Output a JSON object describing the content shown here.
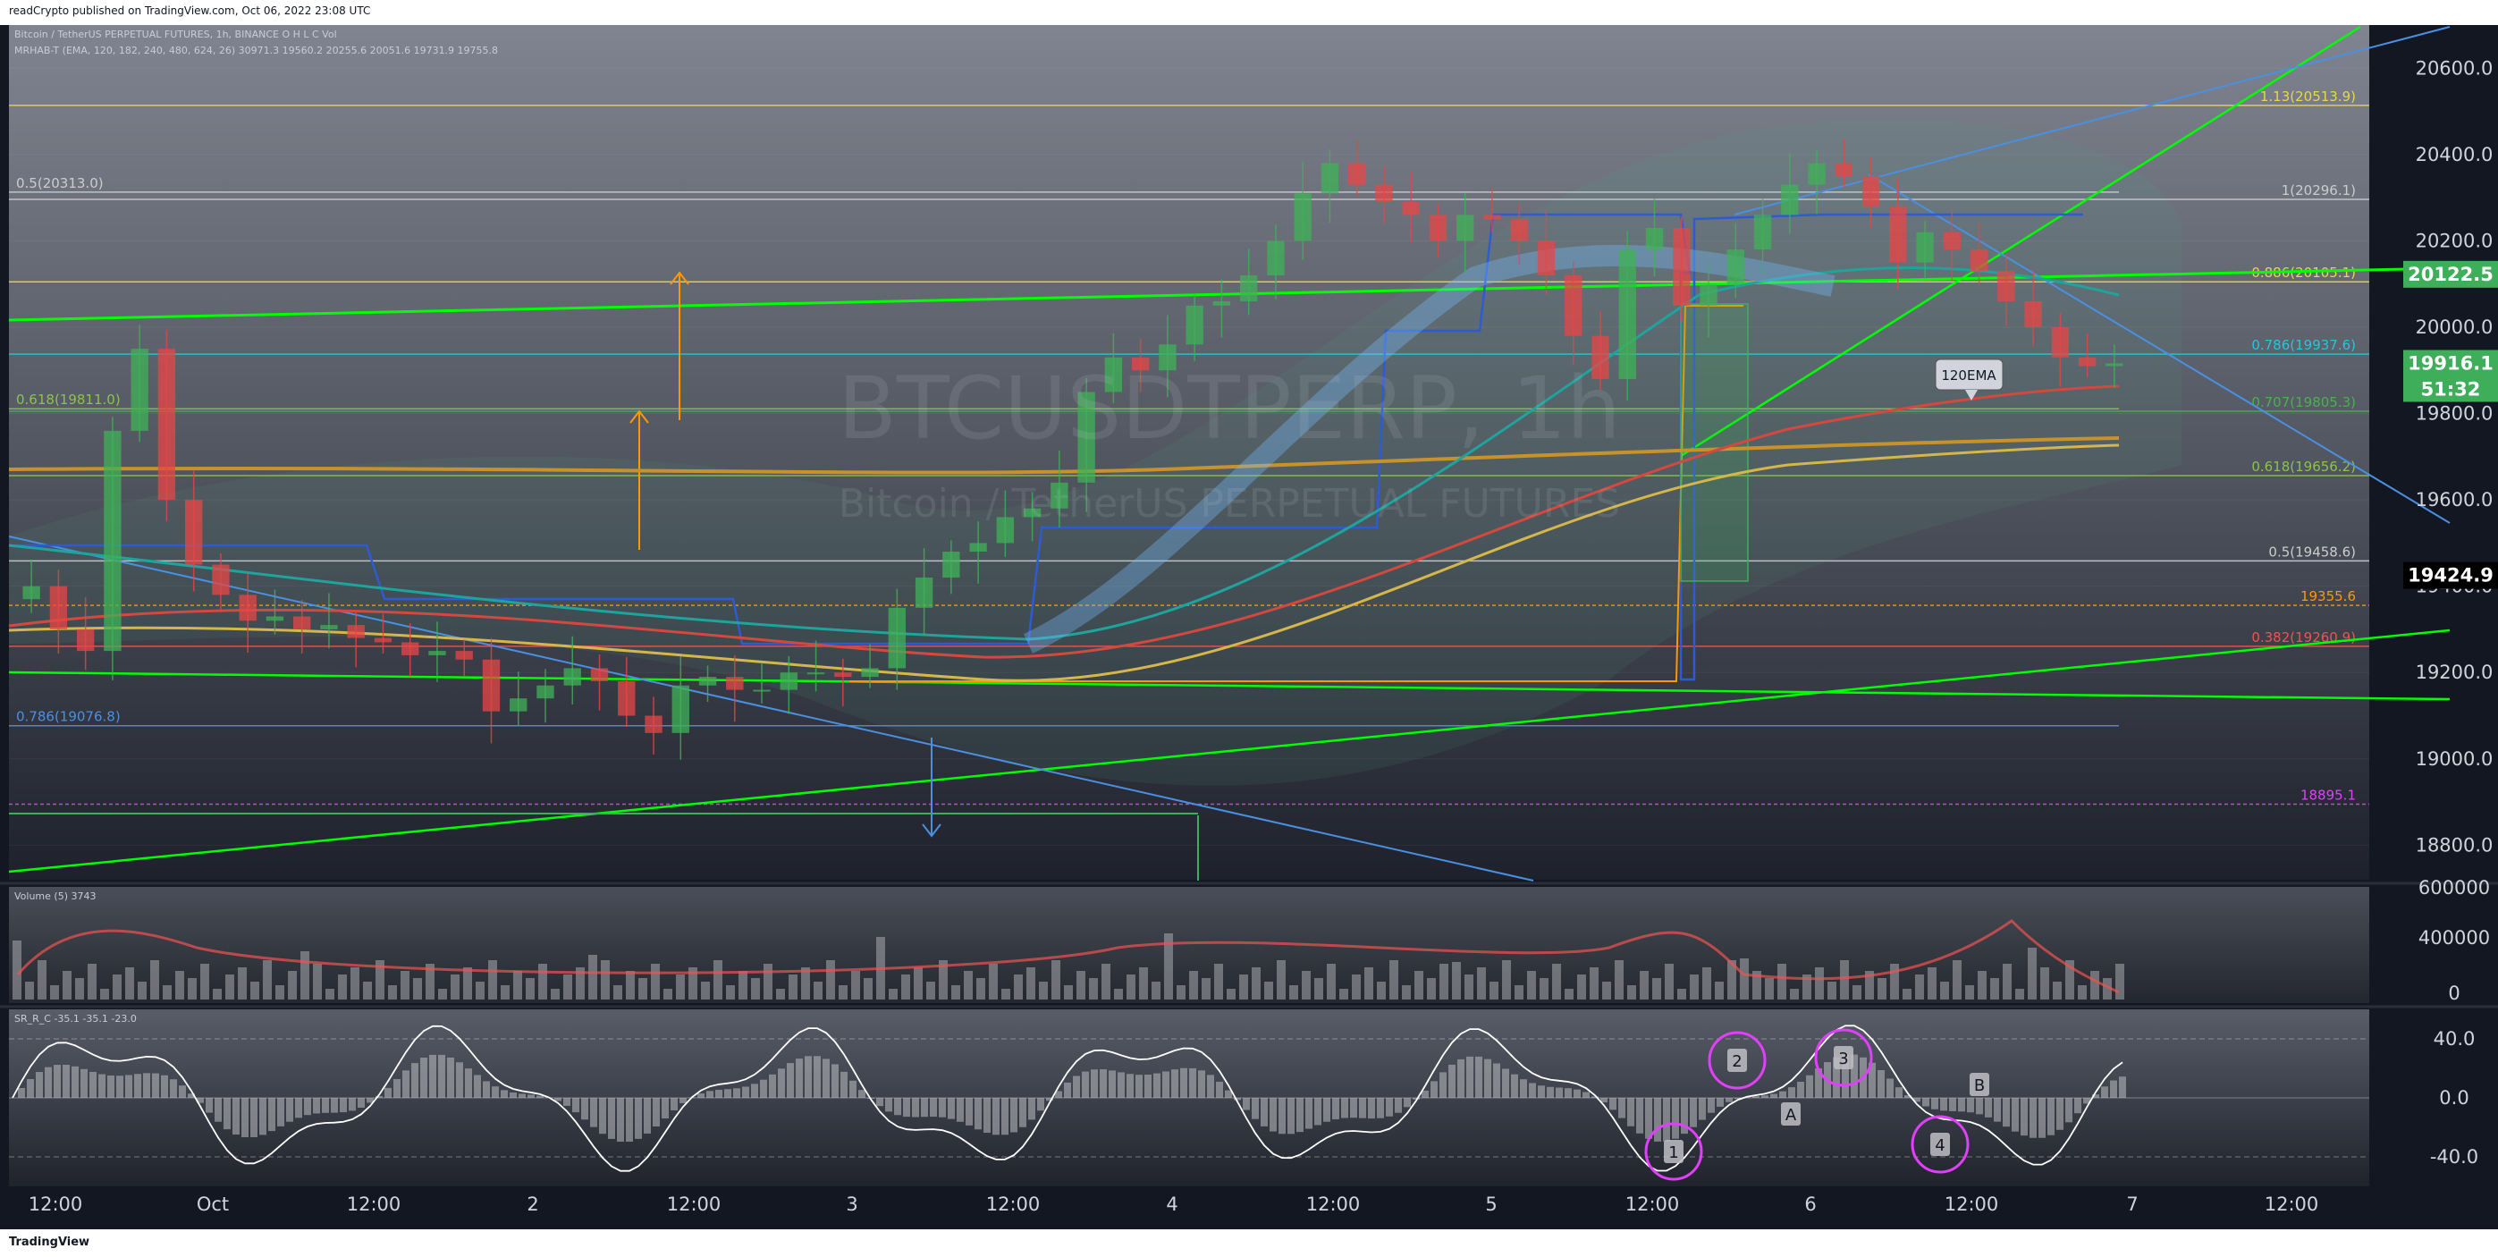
{
  "header": {
    "published": "readCrypto published on TradingView.com, Oct 06, 2022 23:08 UTC",
    "symbol_line": "Bitcoin / TetherUS PERPETUAL FUTURES, 1h, BINANCE  O  H  L  C  Vol",
    "mrhab_line": "MRHAB-T (EMA, 120, 182, 240, 480, 624, 26)  30971.3  19560.2  20255.6  20051.6  19731.9  19755.8",
    "volume_line": "Volume (5)  3743",
    "sr_line": "SR_R_C  -35.1  -35.1  -23.0"
  },
  "watermark": {
    "ticker": "BTCUSDTPERP, 1h",
    "name": "Bitcoin / TetherUS PERPETUAL FUTURES"
  },
  "footer": {
    "brand": "TradingView"
  },
  "colors": {
    "background": "#131722",
    "up": "#26a69a",
    "down": "#ef5350",
    "green_line": "#00ff00",
    "blue_line": "#4a90e2",
    "orange": "#ff9800",
    "ema_red": "#d3483f",
    "ema_orange": "#c8922a",
    "ema_yellow": "#d4b64a",
    "ema_teal": "#1fa39c",
    "price_green": "#3fae5a",
    "price_black": "#000000",
    "osc_cyan": "#00bcd4",
    "circle": "#e040fb"
  },
  "chart_data": [
    {
      "type": "candlestick",
      "title": "BTCUSDTPERP, 1h",
      "ylim": [
        18720,
        20700
      ],
      "y_ticks": [
        18800,
        19000,
        19200,
        19400,
        19600,
        19800,
        20000,
        20200,
        20400,
        20600
      ],
      "y_tick_labels": [
        "18800.0",
        "19000.0",
        "19200.0",
        "19400.0",
        "19600.0",
        "19800.0",
        "20000.0",
        "20200.0",
        "20400.0",
        "20600.0"
      ],
      "x_tick_labels": [
        "12:00",
        "Oct",
        "12:00",
        "2",
        "12:00",
        "3",
        "12:00",
        "4",
        "12:00",
        "5",
        "12:00",
        "6",
        "12:00",
        "7",
        "12:00"
      ],
      "price_labels": [
        {
          "text": "20122.5",
          "value": 20122.5,
          "color": "#3fae5a"
        },
        {
          "text": "19916.1",
          "value": 19916.1,
          "color": "#3fae5a"
        },
        {
          "text": "51:32",
          "value": 19916.1,
          "color": "#3fae5a"
        },
        {
          "text": "19424.9",
          "value": 19424.9,
          "color": "#000000"
        }
      ],
      "fib_levels": [
        {
          "text": "1.13(20513.9)",
          "value": 20513.9,
          "color": "#e6d84a",
          "side": "right"
        },
        {
          "text": "1(20296.1)",
          "value": 20296.1,
          "color": "#cccccc",
          "side": "right"
        },
        {
          "text": "0.886(20105.1)",
          "value": 20105.1,
          "color": "#e6d84a",
          "side": "right"
        },
        {
          "text": "0.786(19937.6)",
          "value": 19937.6,
          "color": "#26c6da",
          "side": "right"
        },
        {
          "text": "0.707(19805.3)",
          "value": 19805.3,
          "color": "#4caf50",
          "side": "right"
        },
        {
          "text": "0.618(19656.2)",
          "value": 19656.2,
          "color": "#8bc34a",
          "side": "right"
        },
        {
          "text": "0.5(19458.6)",
          "value": 19458.6,
          "color": "#cccccc",
          "side": "right"
        },
        {
          "text": "19355.6",
          "value": 19355.6,
          "color": "#ff9800",
          "side": "right"
        },
        {
          "text": "0.382(19260.9)",
          "value": 19260.9,
          "color": "#ef5350",
          "side": "right"
        },
        {
          "text": "18895.1",
          "value": 18895.1,
          "color": "#e040fb",
          "side": "right"
        },
        {
          "text": "0.5(20313.0)",
          "value": 20313.0,
          "color": "#cccccc",
          "side": "left"
        },
        {
          "text": "0.618(19811.0)",
          "value": 19811.0,
          "color": "#8bc34a",
          "side": "left"
        },
        {
          "text": "0.786(19076.8)",
          "value": 19076.8,
          "color": "#4a90e2",
          "side": "left"
        }
      ],
      "annotation": "120EMA",
      "close_series": [
        19400,
        19300,
        19250,
        19760,
        19950,
        19600,
        19450,
        19380,
        19320,
        19330,
        19300,
        19310,
        19280,
        19270,
        19240,
        19250,
        19230,
        19110,
        19140,
        19170,
        19210,
        19180,
        19100,
        19060,
        19170,
        19190,
        19160,
        19160,
        19200,
        19200,
        19190,
        19210,
        19350,
        19420,
        19480,
        19500,
        19560,
        19580,
        19640,
        19850,
        19930,
        19900,
        19960,
        20050,
        20060,
        20120,
        20200,
        20310,
        20380,
        20330,
        20290,
        20260,
        20200,
        20260,
        20250,
        20200,
        20120,
        19980,
        19880,
        20180,
        20230,
        20050,
        20100,
        20180,
        20260,
        20330,
        20380,
        20350,
        20280,
        20150,
        20220,
        20180,
        20130,
        20060,
        20000,
        19930,
        19910,
        19916
      ]
    },
    {
      "type": "bar",
      "title": "Volume (5)",
      "ylim": [
        0,
        600000
      ],
      "y_tick_labels": [
        "0",
        "400000",
        "600000"
      ]
    },
    {
      "type": "line",
      "title": "SR_R_C",
      "ylim": [
        -60,
        60
      ],
      "y_tick_labels": [
        "40.0",
        "0.0",
        "-40.0"
      ],
      "markers": [
        "1",
        "2",
        "3",
        "4",
        "A",
        "B"
      ]
    }
  ]
}
